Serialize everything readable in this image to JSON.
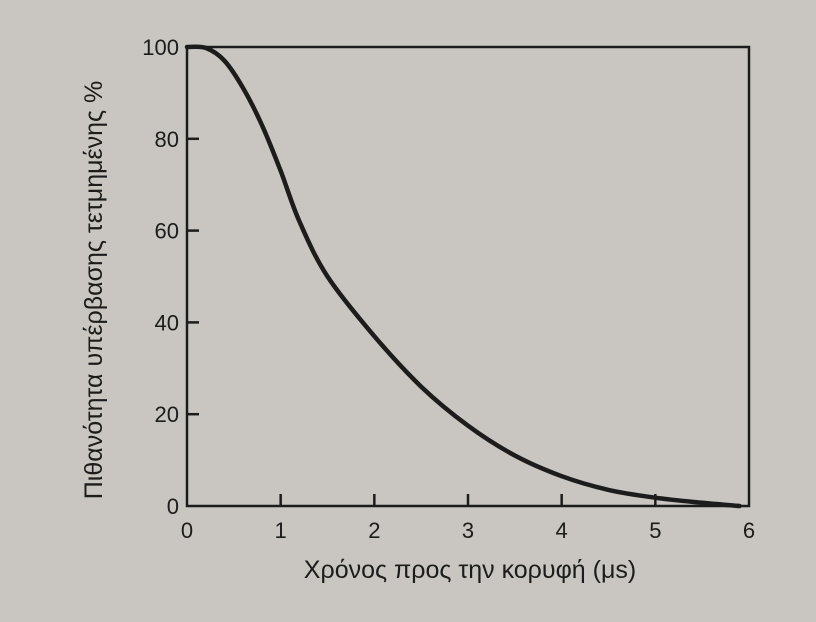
{
  "chart_data": {
    "type": "line",
    "title": "",
    "xlabel": "Χρόνος προς την κορυφή (μs)",
    "ylabel": "Πιθανότητα υπέρβασης τετμημένης %",
    "xlim": [
      0,
      6
    ],
    "ylim": [
      0,
      100
    ],
    "xticks": [
      "0",
      "1",
      "2",
      "3",
      "4",
      "5",
      "6"
    ],
    "yticks": [
      "0",
      "20",
      "40",
      "60",
      "80",
      "100"
    ],
    "grid": false,
    "legend": "none",
    "series": [
      {
        "color": "#1c1c1c",
        "x": [
          0,
          0.2,
          0.4,
          0.6,
          0.8,
          1.0,
          1.2,
          1.5,
          2.0,
          2.5,
          3.0,
          3.5,
          4.0,
          4.5,
          5.0,
          5.5,
          5.9
        ],
        "y": [
          100,
          99.8,
          97,
          91,
          83,
          73,
          62,
          50,
          37,
          26,
          17.5,
          11,
          6.5,
          3.5,
          1.8,
          0.7,
          0
        ]
      }
    ]
  }
}
